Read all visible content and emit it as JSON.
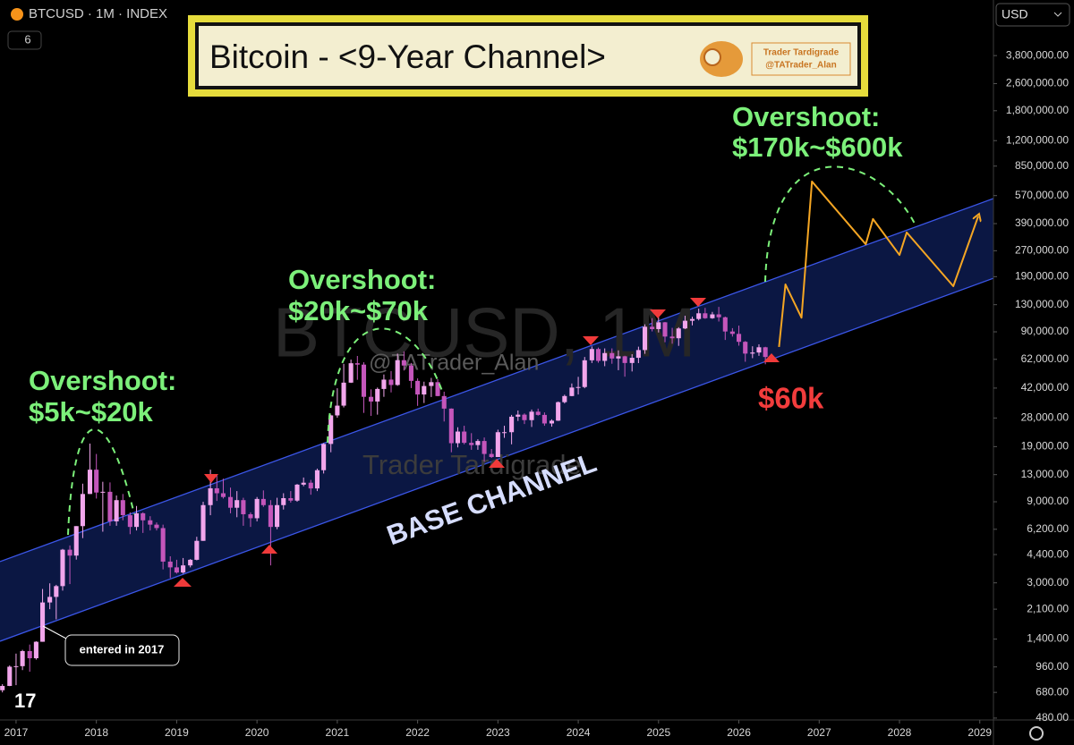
{
  "chart_data": {
    "type": "candlestick",
    "symbol": "BTCUSD · 1M · INDEX",
    "indicator_count": 6,
    "currency": "USD",
    "title": "Bitcoin - <9-Year Channel>",
    "author": [
      "Trader Tardigrade",
      "@TATrader_Alan"
    ],
    "watermarks": [
      "BTCUSD, 1M",
      "@TATrader_Alan",
      "Trader Tardigrade"
    ],
    "log_scale": true,
    "grid": false,
    "up_color": "#f2a6ec",
    "down_color": "#c456bb",
    "xlim": [
      2016.8,
      2029.17
    ],
    "xticks": [
      2017,
      2018,
      2019,
      2020,
      2021,
      2022,
      2023,
      2024,
      2025,
      2026,
      2027,
      2028,
      2029
    ],
    "ylim": [
      468,
      8070000
    ],
    "yticks": [
      {
        "value": 480,
        "label": "480.00"
      },
      {
        "value": 680,
        "label": "680.00"
      },
      {
        "value": 960,
        "label": "960.00"
      },
      {
        "value": 1400,
        "label": "1,400.00"
      },
      {
        "value": 2100,
        "label": "2,100.00"
      },
      {
        "value": 3000,
        "label": "3,000.00"
      },
      {
        "value": 4400,
        "label": "4,400.00"
      },
      {
        "value": 6200,
        "label": "6,200.00"
      },
      {
        "value": 9000,
        "label": "9,000.00"
      },
      {
        "value": 13000,
        "label": "13,000.00"
      },
      {
        "value": 19000,
        "label": "19,000.00"
      },
      {
        "value": 28000,
        "label": "28,000.00"
      },
      {
        "value": 42000,
        "label": "42,000.00"
      },
      {
        "value": 62000,
        "label": "62,000.00"
      },
      {
        "value": 90000,
        "label": "90,000.00"
      },
      {
        "value": 130000,
        "label": "130,000.00"
      },
      {
        "value": 190000,
        "label": "190,000.00"
      },
      {
        "value": 270000,
        "label": "270,000.00"
      },
      {
        "value": 390000,
        "label": "390,000.00"
      },
      {
        "value": 570000,
        "label": "570,000.00"
      },
      {
        "value": 850000,
        "label": "850,000.00"
      },
      {
        "value": 1200000,
        "label": "1,200,000.00"
      },
      {
        "value": 1800000,
        "label": "1,800,000.00"
      },
      {
        "value": 2600000,
        "label": "2,600,000.00"
      },
      {
        "value": 3800000,
        "label": "3,800,000.00"
      }
    ],
    "candles": {
      "x": [
        2016.83,
        2016.92,
        2017.0,
        2017.08,
        2017.17,
        2017.25,
        2017.33,
        2017.42,
        2017.5,
        2017.58,
        2017.67,
        2017.75,
        2017.83,
        2017.92,
        2018.0,
        2018.08,
        2018.17,
        2018.25,
        2018.33,
        2018.42,
        2018.5,
        2018.58,
        2018.67,
        2018.75,
        2018.83,
        2018.92,
        2019.0,
        2019.08,
        2019.17,
        2019.25,
        2019.33,
        2019.42,
        2019.5,
        2019.58,
        2019.67,
        2019.75,
        2019.83,
        2019.92,
        2020.0,
        2020.08,
        2020.17,
        2020.25,
        2020.33,
        2020.42,
        2020.5,
        2020.58,
        2020.67,
        2020.75,
        2020.83,
        2020.92,
        2021.0,
        2021.08,
        2021.17,
        2021.25,
        2021.33,
        2021.42,
        2021.5,
        2021.58,
        2021.67,
        2021.75,
        2021.83,
        2021.92,
        2022.0,
        2022.08,
        2022.17,
        2022.25,
        2022.33,
        2022.42,
        2022.5,
        2022.58,
        2022.67,
        2022.75,
        2022.83,
        2022.92,
        2023.0,
        2023.08,
        2023.17,
        2023.25,
        2023.33,
        2023.42,
        2023.5,
        2023.58,
        2023.67,
        2023.75,
        2023.83,
        2023.92,
        2024.0,
        2024.08,
        2024.17,
        2024.25,
        2024.33,
        2024.42,
        2024.5,
        2024.58,
        2024.67,
        2024.75,
        2024.83,
        2024.92,
        2025.0,
        2025.08,
        2025.17,
        2025.25,
        2025.33,
        2025.42,
        2025.5,
        2025.58,
        2025.67,
        2025.75,
        2025.83,
        2025.92,
        2026.0,
        2026.08,
        2026.17,
        2026.25,
        2026.33
      ],
      "open": [
        700,
        742,
        963,
        970,
        1190,
        1080,
        1350,
        2300,
        2480,
        2870,
        4700,
        4340,
        6470,
        10000,
        13900,
        10200,
        10300,
        6900,
        9200,
        7500,
        6400,
        7700,
        7000,
        6600,
        6300,
        4000,
        3700,
        3450,
        3800,
        4100,
        5300,
        8600,
        10800,
        10100,
        9600,
        8300,
        9200,
        7600,
        7200,
        9350,
        8600,
        6400,
        8600,
        9450,
        9140,
        11350,
        11650,
        10780,
        13800,
        19700,
        29000,
        33100,
        45200,
        58800,
        57700,
        37300,
        35000,
        41500,
        47100,
        43800,
        61300,
        57000,
        46300,
        38500,
        43200,
        45500,
        37700,
        31800,
        19900,
        23300,
        20000,
        19400,
        20500,
        17200,
        16500,
        23100,
        23100,
        28500,
        29300,
        27200,
        30500,
        29200,
        26000,
        27000,
        34700,
        37700,
        42300,
        42600,
        61200,
        71300,
        60700,
        67500,
        62700,
        64600,
        59000,
        63300,
        70300,
        96400,
        93400,
        102400,
        84400,
        82500,
        94200,
        104600,
        107100,
        115700,
        108200,
        114000,
        109600,
        90400,
        87500,
        78600,
        67000,
        68000,
        73000
      ],
      "high": [
        760,
        980,
        1150,
        1210,
        1300,
        1360,
        2760,
        2980,
        2920,
        4750,
        4980,
        6470,
        11500,
        19800,
        17200,
        11800,
        11700,
        9800,
        10000,
        7800,
        8500,
        7800,
        7400,
        6800,
        6600,
        4300,
        4100,
        4200,
        4140,
        5600,
        9000,
        13900,
        13100,
        12300,
        10900,
        10400,
        9500,
        7800,
        9600,
        10500,
        9200,
        9500,
        10100,
        10400,
        11450,
        12500,
        12100,
        14100,
        19900,
        29300,
        41900,
        58300,
        61800,
        64900,
        59600,
        41300,
        42300,
        50500,
        52900,
        67000,
        69000,
        59000,
        47900,
        45800,
        48200,
        47400,
        40000,
        31900,
        24700,
        25200,
        22800,
        21000,
        21500,
        18400,
        23900,
        25200,
        29200,
        31000,
        29800,
        31400,
        31800,
        30200,
        27500,
        35000,
        38400,
        44700,
        48900,
        64000,
        73800,
        72700,
        71900,
        71900,
        70000,
        65100,
        66500,
        73600,
        99600,
        108300,
        109400,
        102800,
        95000,
        95800,
        111900,
        110500,
        123200,
        124500,
        117900,
        126200,
        110600,
        94600,
        97900,
        79400,
        74000,
        76000,
        73500
      ],
      "low": [
        680,
        740,
        750,
        920,
        900,
        1060,
        1350,
        2100,
        1830,
        2700,
        2950,
        4110,
        5500,
        10000,
        9400,
        6000,
        6500,
        6500,
        7000,
        5800,
        6100,
        5900,
        6100,
        6100,
        3600,
        3200,
        3400,
        3400,
        3700,
        4070,
        5300,
        7500,
        9100,
        9400,
        7700,
        7300,
        6500,
        6400,
        6900,
        8400,
        3800,
        6200,
        8100,
        8900,
        9000,
        11100,
        9900,
        10400,
        13200,
        17600,
        28100,
        32300,
        45000,
        47000,
        30000,
        28800,
        29300,
        37300,
        39600,
        43300,
        53300,
        42000,
        33000,
        34300,
        37200,
        37600,
        26700,
        17600,
        18800,
        19600,
        18200,
        18200,
        15500,
        16300,
        16500,
        21400,
        19600,
        26900,
        25800,
        24800,
        28900,
        25200,
        24900,
        26900,
        34100,
        37600,
        38500,
        41900,
        59000,
        59200,
        56500,
        58400,
        53500,
        49000,
        52600,
        58900,
        66800,
        90500,
        89200,
        78200,
        76600,
        74400,
        93400,
        98200,
        105100,
        107300,
        107300,
        103500,
        80600,
        84400,
        74600,
        60000,
        63000,
        65000,
        58000
      ],
      "close": [
        742,
        963,
        970,
        1190,
        1080,
        1350,
        2300,
        2480,
        2870,
        4700,
        4340,
        6470,
        10000,
        13900,
        10200,
        10300,
        6900,
        9200,
        7500,
        6400,
        7700,
        7000,
        6600,
        6300,
        4000,
        3700,
        3450,
        3800,
        4100,
        5300,
        8600,
        10800,
        10100,
        9600,
        8300,
        9200,
        7600,
        7200,
        9350,
        8600,
        6400,
        8600,
        9450,
        9140,
        11350,
        11650,
        10780,
        13800,
        19700,
        29000,
        33100,
        45200,
        58800,
        57700,
        37300,
        35000,
        41500,
        47100,
        43800,
        61300,
        57000,
        46300,
        38500,
        43200,
        45500,
        37700,
        31800,
        19900,
        23300,
        20000,
        19400,
        20500,
        17200,
        16500,
        23100,
        23100,
        28500,
        29300,
        27200,
        30500,
        29200,
        26000,
        27000,
        34700,
        37700,
        42300,
        42600,
        61200,
        71300,
        60700,
        67500,
        62700,
        64600,
        59000,
        63300,
        70300,
        96400,
        93400,
        102400,
        84400,
        82500,
        94200,
        104600,
        107100,
        115700,
        108200,
        114000,
        109600,
        90400,
        87500,
        78600,
        67000,
        68000,
        73000,
        64000
      ]
    },
    "channel": {
      "label": "BASE CHANNEL",
      "x": [
        2016.8,
        2029.17
      ],
      "upper": [
        4000,
        548000
      ],
      "lower": [
        1360,
        186000
      ],
      "line_color": "#3b56e8",
      "fill": "#0c1847"
    },
    "projection": {
      "color": "#f5a623",
      "x": [
        2026.5,
        2026.58,
        2026.78,
        2026.91,
        2027.58,
        2027.67,
        2028.0,
        2028.09,
        2028.67,
        2028.98
      ],
      "values": [
        73300,
        171000,
        109000,
        690000,
        295000,
        415000,
        255000,
        346000,
        167000,
        430000
      ]
    },
    "annotations": [
      [
        "Overshoot:",
        "$5k~$20k"
      ],
      [
        "Overshoot:",
        "$20k~$70k"
      ],
      [
        "Overshoot:",
        "$170k~$600k"
      ]
    ],
    "price_target": "$60k",
    "callout": "entered in 2017"
  }
}
